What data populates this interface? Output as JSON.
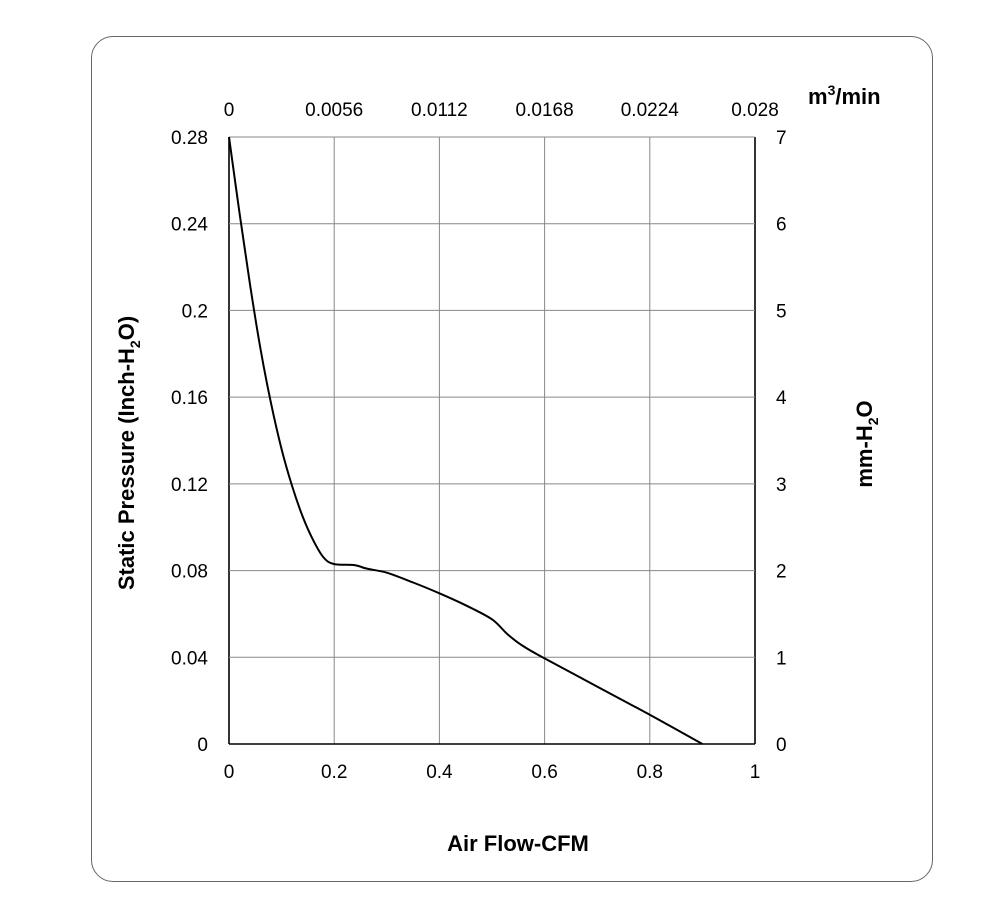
{
  "chart_data": {
    "type": "line",
    "xlabel": "Air Flow-CFM",
    "ylabel_left_main": "Static Pressure (Inch-H",
    "ylabel_left_sub": "2",
    "ylabel_left_end": "O)",
    "ylabel_right_main": "mm-H",
    "ylabel_right_sub": "2",
    "ylabel_right_end": "O",
    "x2label_main": "m",
    "x2label_sup": "3",
    "x2label_end": "/min",
    "xlim": [
      0,
      1
    ],
    "ylim": [
      0,
      0.28
    ],
    "x2lim": [
      0,
      0.028
    ],
    "y2lim": [
      0,
      7
    ],
    "x_ticks": [
      "0",
      "0.2",
      "0.4",
      "0.6",
      "0.8",
      "1"
    ],
    "y_ticks": [
      "0",
      "0.04",
      "0.08",
      "0.12",
      "0.16",
      "0.2",
      "0.24",
      "0.28"
    ],
    "x2_ticks": [
      "0",
      "0.0056",
      "0.0112",
      "0.0168",
      "0.0224",
      "0.028"
    ],
    "y2_ticks": [
      "0",
      "1",
      "2",
      "3",
      "4",
      "5",
      "6",
      "7"
    ],
    "grid": true,
    "series": [
      {
        "color": "#000000",
        "x": [
          0,
          0.02,
          0.04,
          0.06,
          0.08,
          0.1,
          0.12,
          0.14,
          0.16,
          0.18,
          0.2,
          0.24,
          0.26,
          0.3,
          0.35,
          0.4,
          0.45,
          0.5,
          0.53,
          0.56,
          0.6,
          0.7,
          0.8,
          0.9
        ],
        "y": [
          0.28,
          0.245,
          0.212,
          0.182,
          0.157,
          0.136,
          0.119,
          0.105,
          0.094,
          0.086,
          0.083,
          0.0825,
          0.081,
          0.079,
          0.0745,
          0.0695,
          0.064,
          0.0575,
          0.0505,
          0.045,
          0.0395,
          0.0265,
          0.0135,
          0
        ]
      }
    ]
  }
}
